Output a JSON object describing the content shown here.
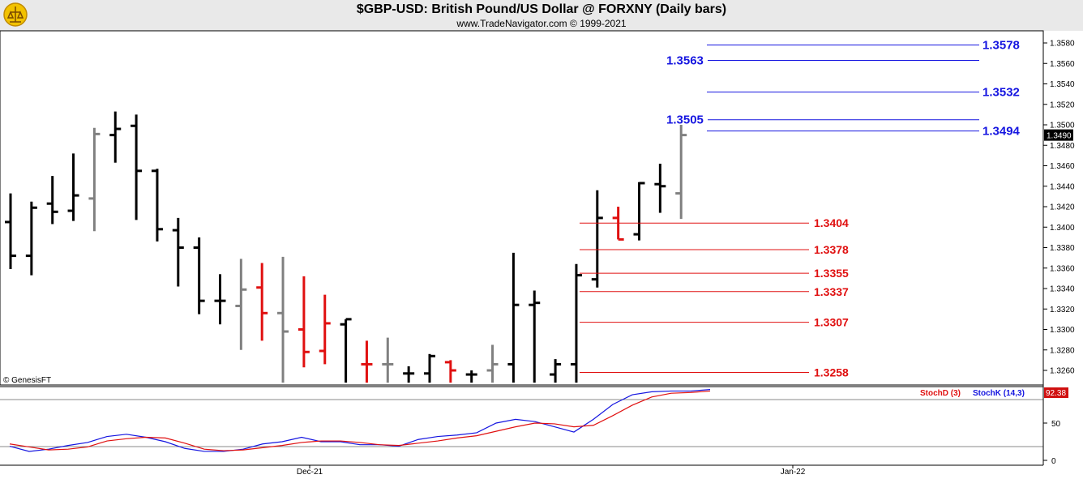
{
  "header": {
    "title": "$GBP-USD:  British Pound/US Dollar @ FORXNY  (Daily bars)",
    "subtitle": "www.TradeNavigator.com © 1999-2021"
  },
  "watermark": "© GenesisFT",
  "colors": {
    "up_bar": "#000000",
    "neutral_bar": "#808080",
    "down_bar": "#e01010",
    "resistance": "#1515e0",
    "support": "#e01010",
    "stochK": "#1515e0",
    "stochD": "#e01010",
    "header_bg": "#e9e9e9"
  },
  "chart_data": [
    {
      "type": "ohlc",
      "title": "$GBP-USD:  British Pound/US Dollar @ FORXNY  (Daily bars)",
      "ylim": [
        1.3248,
        1.3595
      ],
      "y_ticks": [
        "1.3260",
        "1.3280",
        "1.3300",
        "1.3320",
        "1.3340",
        "1.3360",
        "1.3380",
        "1.3400",
        "1.3420",
        "1.3440",
        "1.3460",
        "1.3480",
        "1.3500",
        "1.3520",
        "1.3540",
        "1.3560",
        "1.3580"
      ],
      "last_price": "1.3490",
      "x_labels": [
        "Dec-21",
        "Jan-22"
      ],
      "bars": [
        {
          "o": 1.3405,
          "h": 1.3433,
          "l": 1.3359,
          "c": 1.3372,
          "color": "black"
        },
        {
          "o": 1.3372,
          "h": 1.3425,
          "l": 1.3353,
          "c": 1.3419,
          "color": "black"
        },
        {
          "o": 1.3423,
          "h": 1.345,
          "l": 1.3403,
          "c": 1.3415,
          "color": "black"
        },
        {
          "o": 1.3416,
          "h": 1.3472,
          "l": 1.3406,
          "c": 1.3431,
          "color": "black"
        },
        {
          "o": 1.3428,
          "h": 1.3497,
          "l": 1.3396,
          "c": 1.3491,
          "color": "gray"
        },
        {
          "o": 1.349,
          "h": 1.3513,
          "l": 1.3463,
          "c": 1.3496,
          "color": "black"
        },
        {
          "o": 1.3499,
          "h": 1.351,
          "l": 1.3407,
          "c": 1.3455,
          "color": "black"
        },
        {
          "o": 1.3455,
          "h": 1.3457,
          "l": 1.3386,
          "c": 1.3398,
          "color": "black"
        },
        {
          "o": 1.3397,
          "h": 1.3409,
          "l": 1.3342,
          "c": 1.338,
          "color": "black"
        },
        {
          "o": 1.338,
          "h": 1.339,
          "l": 1.3315,
          "c": 1.3328,
          "color": "black"
        },
        {
          "o": 1.3328,
          "h": 1.3354,
          "l": 1.3305,
          "c": 1.3328,
          "color": "black"
        },
        {
          "o": 1.3323,
          "h": 1.3369,
          "l": 1.328,
          "c": 1.3339,
          "color": "gray"
        },
        {
          "o": 1.3341,
          "h": 1.3365,
          "l": 1.3289,
          "c": 1.3316,
          "color": "red"
        },
        {
          "o": 1.3316,
          "h": 1.3371,
          "l": 1.3248,
          "c": 1.3298,
          "color": "gray"
        },
        {
          "o": 1.33,
          "h": 1.3352,
          "l": 1.3263,
          "c": 1.3278,
          "color": "red"
        },
        {
          "o": 1.3279,
          "h": 1.3334,
          "l": 1.3266,
          "c": 1.3306,
          "color": "red"
        },
        {
          "o": 1.3305,
          "h": 1.331,
          "l": 1.3248,
          "c": 1.331,
          "color": "black"
        },
        {
          "o": 1.3266,
          "h": 1.3289,
          "l": 1.3248,
          "c": 1.3266,
          "color": "red"
        },
        {
          "o": 1.3266,
          "h": 1.3292,
          "l": 1.3248,
          "c": 1.3266,
          "color": "gray"
        },
        {
          "o": 1.3257,
          "h": 1.3264,
          "l": 1.3248,
          "c": 1.3257,
          "color": "black"
        },
        {
          "o": 1.3257,
          "h": 1.3276,
          "l": 1.3248,
          "c": 1.3274,
          "color": "black"
        },
        {
          "o": 1.3268,
          "h": 1.327,
          "l": 1.3248,
          "c": 1.326,
          "color": "red"
        },
        {
          "o": 1.3256,
          "h": 1.326,
          "l": 1.3248,
          "c": 1.3256,
          "color": "black"
        },
        {
          "o": 1.326,
          "h": 1.3285,
          "l": 1.3248,
          "c": 1.3266,
          "color": "gray"
        },
        {
          "o": 1.3266,
          "h": 1.3375,
          "l": 1.3248,
          "c": 1.3324,
          "color": "black"
        },
        {
          "o": 1.3324,
          "h": 1.3338,
          "l": 1.3248,
          "c": 1.3326,
          "color": "black"
        },
        {
          "o": 1.3256,
          "h": 1.3271,
          "l": 1.3248,
          "c": 1.3266,
          "color": "black"
        },
        {
          "o": 1.3266,
          "h": 1.3364,
          "l": 1.3248,
          "c": 1.3353,
          "color": "black"
        },
        {
          "o": 1.3349,
          "h": 1.3436,
          "l": 1.3341,
          "c": 1.3409,
          "color": "black"
        },
        {
          "o": 1.3409,
          "h": 1.342,
          "l": 1.3388,
          "c": 1.3388,
          "color": "red"
        },
        {
          "o": 1.3393,
          "h": 1.3444,
          "l": 1.3387,
          "c": 1.3443,
          "color": "black"
        },
        {
          "o": 1.3442,
          "h": 1.3462,
          "l": 1.3414,
          "c": 1.344,
          "color": "black"
        },
        {
          "o": 1.3433,
          "h": 1.35,
          "l": 1.3408,
          "c": 1.349,
          "color": "gray"
        }
      ],
      "resistance_levels": [
        {
          "value": 1.3578,
          "label": "1.3578",
          "side": "right"
        },
        {
          "value": 1.3563,
          "label": "1.3563",
          "side": "left"
        },
        {
          "value": 1.3532,
          "label": "1.3532",
          "side": "right"
        },
        {
          "value": 1.3505,
          "label": "1.3505",
          "side": "left"
        },
        {
          "value": 1.3494,
          "label": "1.3494",
          "side": "right"
        }
      ],
      "support_levels": [
        {
          "value": 1.3404,
          "label": "1.3404"
        },
        {
          "value": 1.3378,
          "label": "1.3378"
        },
        {
          "value": 1.3355,
          "label": "1.3355"
        },
        {
          "value": 1.3337,
          "label": "1.3337"
        },
        {
          "value": 1.3307,
          "label": "1.3307"
        },
        {
          "value": 1.3258,
          "label": "1.3258"
        }
      ]
    },
    {
      "type": "line",
      "title": "",
      "ylim": [
        0,
        100
      ],
      "y_ticks": [
        "50",
        "0"
      ],
      "series_labels": [
        "StochD (3)",
        "StochK (14,3)"
      ],
      "last_value": "92.38",
      "series": [
        {
          "name": "StochK (14,3)",
          "color": "blue",
          "values": [
            19,
            12,
            15,
            20,
            24,
            32,
            35,
            31,
            25,
            16,
            12,
            12,
            15,
            22,
            25,
            31,
            25,
            25,
            21,
            21,
            19,
            28,
            32,
            34,
            37,
            50,
            55,
            52,
            45,
            38,
            55,
            75,
            88,
            92,
            93,
            93,
            95
          ]
        },
        {
          "name": "StochD (3)",
          "color": "red",
          "values": [
            22,
            18,
            14,
            15,
            18,
            26,
            29,
            31,
            30,
            23,
            15,
            13,
            14,
            17,
            20,
            24,
            26,
            26,
            24,
            21,
            20,
            23,
            26,
            30,
            33,
            39,
            45,
            50,
            49,
            45,
            47,
            60,
            74,
            85,
            90,
            91,
            93
          ]
        }
      ]
    }
  ]
}
